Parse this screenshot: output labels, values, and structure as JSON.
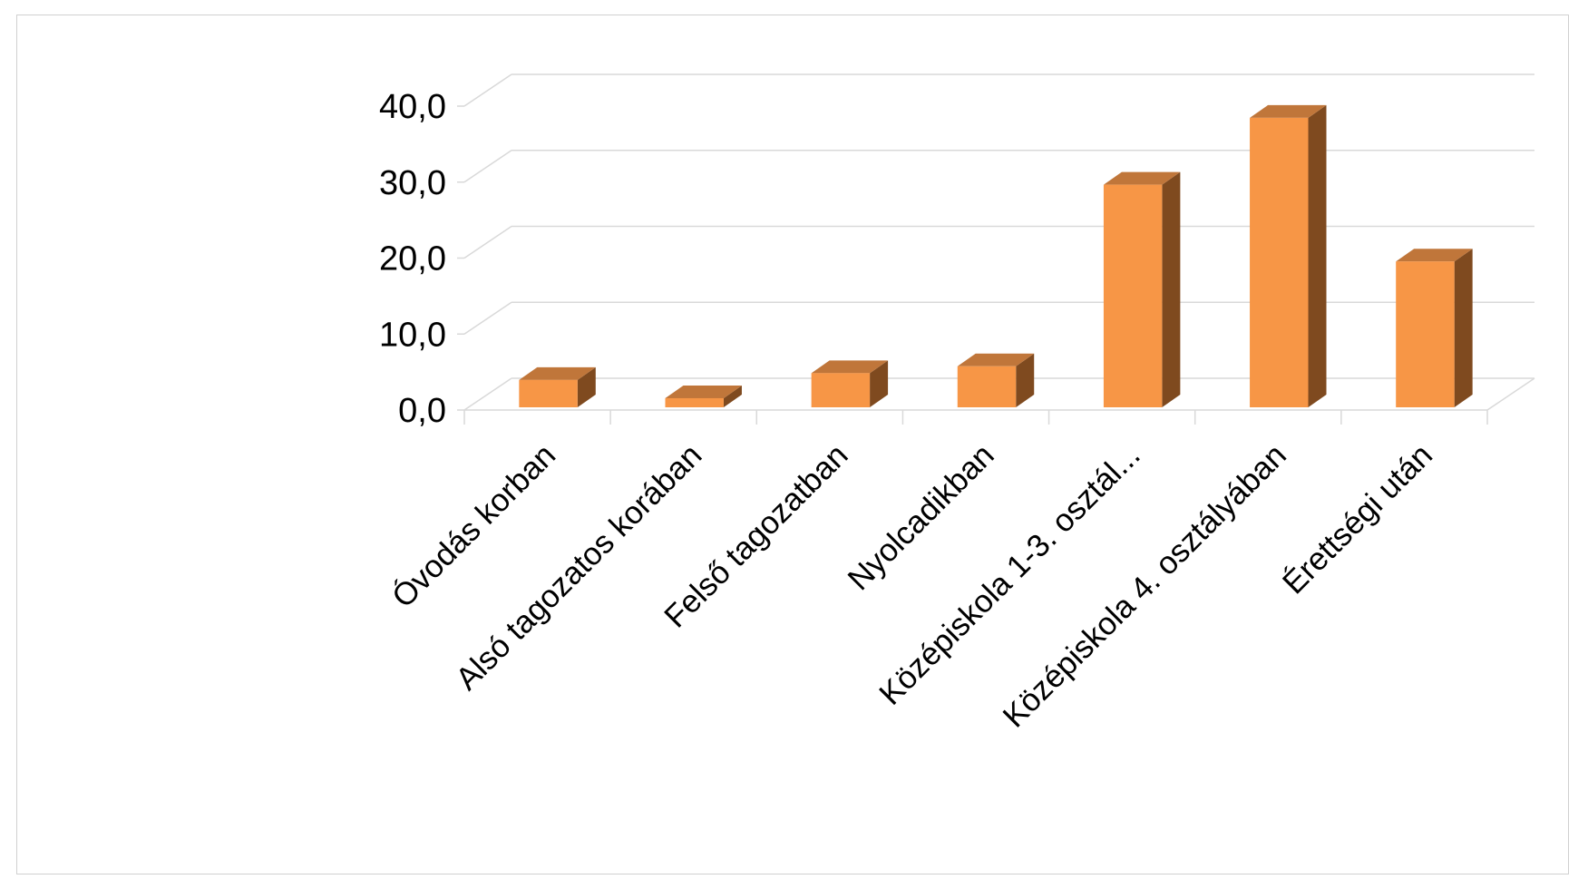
{
  "chart_data": {
    "type": "bar",
    "style": "3d-column",
    "title": "",
    "xlabel": "",
    "ylabel": "",
    "categories": [
      "Óvodás korban",
      "Alsó tagozatos korában",
      "Felső tagozatban",
      "Nyolcadikban",
      "Középiskola 1-3. osztál...",
      "Középiskola 4. osztályában",
      "Érettségi után"
    ],
    "values": [
      3.6,
      1.2,
      4.5,
      5.4,
      29.3,
      38.1,
      19.2
    ],
    "ylim": [
      0,
      40
    ],
    "yticks": [
      "0,0",
      "10,0",
      "20,0",
      "30,0",
      "40,0"
    ],
    "grid": true,
    "legend": "none",
    "colors": {
      "bar_front": "#F79646",
      "bar_top": "#C0763A",
      "bar_side": "#7F4A1F",
      "gridline": "#D9D9D9"
    }
  }
}
